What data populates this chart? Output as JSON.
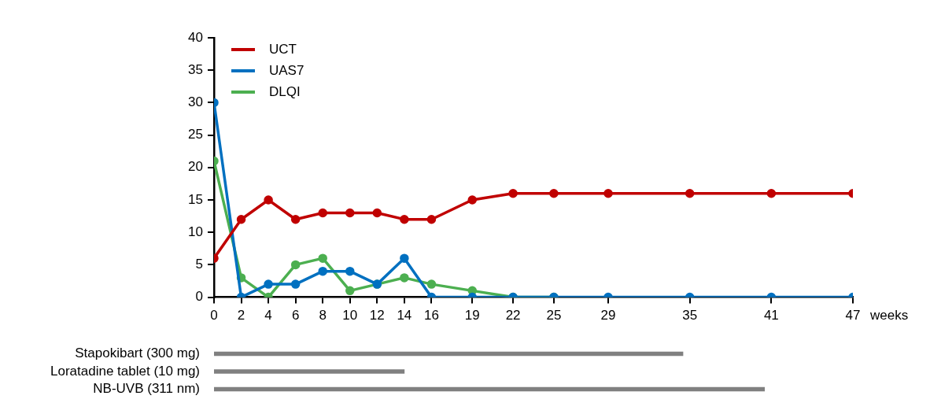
{
  "chart_data": [
    {
      "type": "line",
      "xlabel": "weeks",
      "x": [
        0,
        2,
        4,
        6,
        8,
        10,
        12,
        14,
        16,
        19,
        22,
        25,
        29,
        35,
        41,
        47
      ],
      "xlim": [
        0,
        47
      ],
      "xticks": [
        0,
        2,
        4,
        6,
        8,
        10,
        12,
        14,
        16,
        19,
        22,
        25,
        29,
        35,
        41,
        47
      ],
      "ylim": [
        0,
        40
      ],
      "yticks": [
        0,
        5,
        10,
        15,
        20,
        25,
        30,
        35,
        40
      ],
      "series": [
        {
          "name": "UCT",
          "color": "#c00000",
          "values": [
            6,
            12,
            15,
            12,
            13,
            13,
            13,
            12,
            12,
            15,
            16,
            16,
            16,
            16,
            16,
            16
          ]
        },
        {
          "name": "UAS7",
          "color": "#0070c0",
          "values": [
            30,
            0,
            2,
            2,
            4,
            4,
            2,
            6,
            0,
            0,
            0,
            0,
            0,
            0,
            0,
            0
          ]
        },
        {
          "name": "DLQI",
          "color": "#4caf50",
          "values": [
            21,
            3,
            0,
            5,
            6,
            1,
            2,
            3,
            2,
            1,
            0,
            0,
            null,
            null,
            null,
            null
          ]
        }
      ],
      "grid": false,
      "legend": "top left",
      "marker": "circle",
      "line_style": "solid"
    },
    {
      "type": "bar",
      "orientation": "horizontal",
      "categories": [
        "Stapokibart (300 mg)",
        "Loratadine tablet (10 mg)",
        "NB-UVB (311 nm)"
      ],
      "base": [
        0,
        0,
        0
      ],
      "values": [
        34.5,
        14,
        40.5
      ],
      "color": "#808080",
      "xlim": [
        0,
        47
      ],
      "tick_labels": "y"
    }
  ]
}
